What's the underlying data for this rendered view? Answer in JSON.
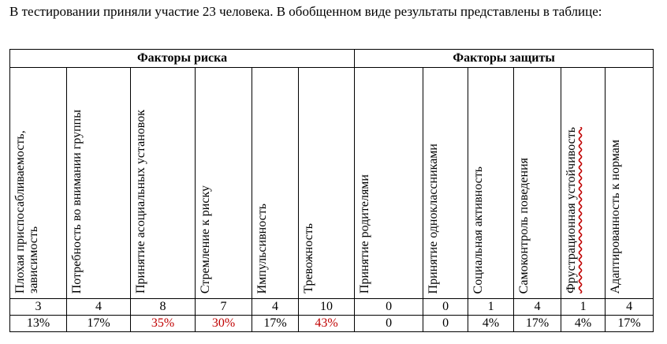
{
  "intro_text": "В тестировании приняли участие 23 человека. В обобщенном виде результаты представлены в таблице:",
  "groups": {
    "risk": "Факторы риска",
    "protection": "Факторы защиты"
  },
  "columns": [
    {
      "label": "Плохая приспосабливаемость, зависимость",
      "count": "3",
      "percent": "13%",
      "highlight": false
    },
    {
      "label": "Потребность во внимании группы",
      "count": "4",
      "percent": "17%",
      "highlight": false
    },
    {
      "label": "Принятие асоциальных установок",
      "count": "8",
      "percent": "35%",
      "highlight": true
    },
    {
      "label": "Стремление к риску",
      "count": "7",
      "percent": "30%",
      "highlight": true
    },
    {
      "label": "Импульсивность",
      "count": "4",
      "percent": "17%",
      "highlight": false
    },
    {
      "label": "Тревожность",
      "count": "10",
      "percent": "43%",
      "highlight": true
    },
    {
      "label": "Принятие родителями",
      "count": "0",
      "percent": "0",
      "highlight": false
    },
    {
      "label": "Принятие одноклассниками",
      "count": "0",
      "percent": "0",
      "highlight": false
    },
    {
      "label": "Социальная активность",
      "count": "1",
      "percent": "4%",
      "highlight": false
    },
    {
      "label": "Самоконтроль поведения",
      "count": "4",
      "percent": "17%",
      "highlight": false
    },
    {
      "label": "Фрустрационная устойчивость",
      "count": "1",
      "percent": "4%",
      "highlight": false
    },
    {
      "label": "Адаптированность к нормам",
      "count": "4",
      "percent": "17%",
      "highlight": false
    }
  ],
  "colors": {
    "highlight": "#c00000",
    "border": "#000000"
  }
}
